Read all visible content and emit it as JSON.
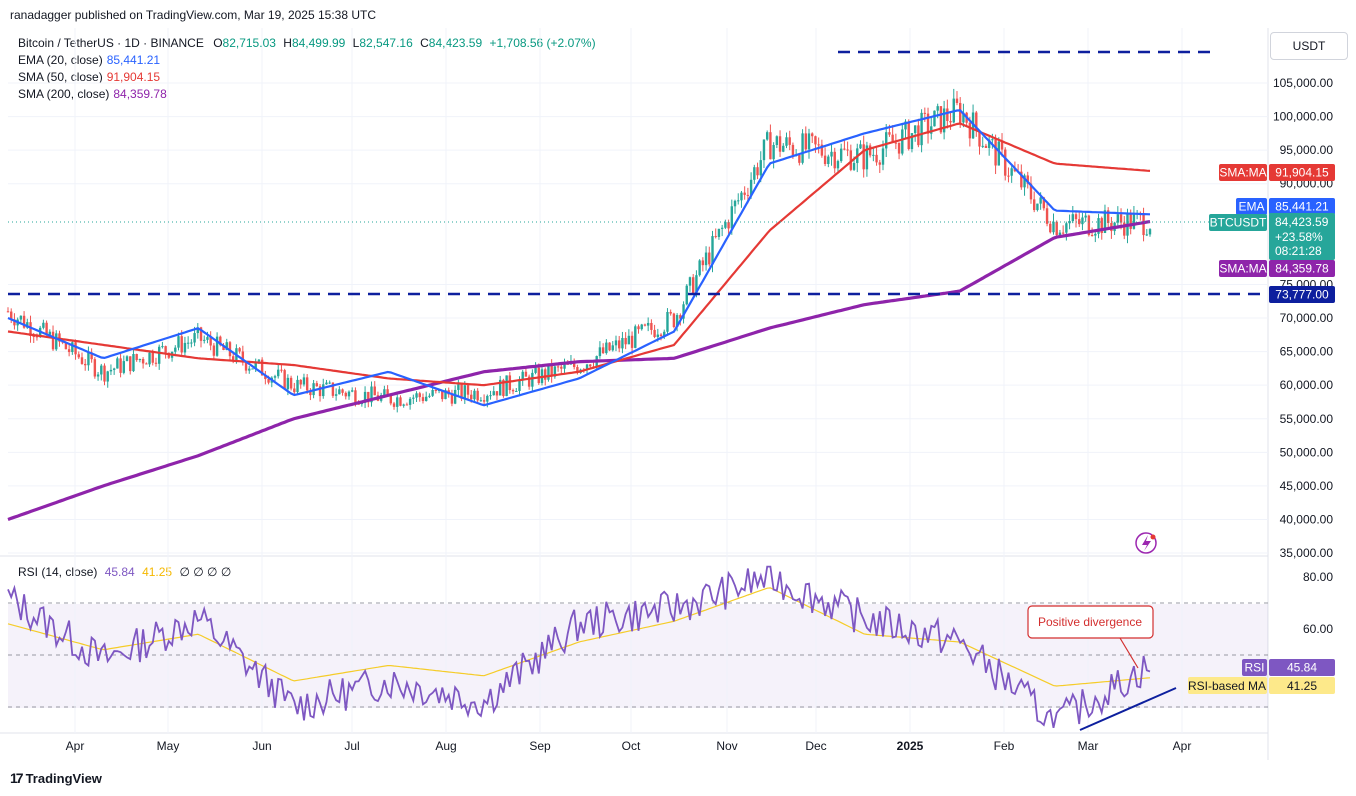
{
  "header": {
    "publisher": "ranadagger published on TradingView.com, Mar 19, 2025 15:38 UTC"
  },
  "legend": {
    "symbol": "Bitcoin / TetherUS · 1D · BINANCE",
    "o_label": "O",
    "o_value": "82,715.03",
    "h_label": "H",
    "h_value": "84,499.99",
    "l_label": "L",
    "l_value": "82,547.16",
    "c_label": "C",
    "c_value": "84,423.59",
    "change": "+1,708.56 (+2.07%)",
    "ema20_label": "EMA (20, close)",
    "ema20_value": "85,441.21",
    "sma50_label": "SMA (50, close)",
    "sma50_value": "91,904.15",
    "sma200_label": "SMA (200, close)",
    "sma200_value": "84,359.78"
  },
  "rsi_legend": {
    "label": "RSI (14, close)",
    "rsi": "45.84",
    "ma": "41.25",
    "extra": "∅ ∅ ∅ ∅"
  },
  "axis": {
    "unit": "USDT",
    "price_ticks": [
      "105,000.00",
      "100,000.00",
      "95,000.00",
      "90,000.00",
      "75,000.00",
      "70,000.00",
      "65,000.00",
      "60,000.00",
      "55,000.00",
      "50,000.00",
      "45,000.00",
      "40,000.00",
      "35,000.00"
    ],
    "rsi_ticks": [
      "80.00",
      "60.00"
    ],
    "months": [
      "Apr",
      "May",
      "Jun",
      "Jul",
      "Aug",
      "Sep",
      "Oct",
      "Nov",
      "Dec",
      "2025",
      "Feb",
      "Mar",
      "Apr"
    ]
  },
  "tags": {
    "sma50_name": "SMA:MA",
    "sma50_value": "91,904.15",
    "ema_name": "EMA",
    "ema_value": "85,441.21",
    "price_name": "BTCUSDT",
    "price_value": "84,423.59",
    "price_change": "+23.58%",
    "countdown": "08:21:28",
    "sma200_name": "SMA:MA",
    "sma200_value": "84,359.78",
    "support_value": "73,777.00",
    "rsi_name": "RSI",
    "rsi_value": "45.84",
    "rsi_ma_name": "RSI-based MA",
    "rsi_ma_value": "41.25"
  },
  "annotation": {
    "text": "Positive divergence"
  },
  "footer": {
    "brand": "TradingView"
  },
  "colors": {
    "ema": "#2962ff",
    "sma50": "#e53935",
    "sma200": "#8e24aa",
    "up": "#26a69a",
    "down": "#ef5350",
    "rsi": "#7e57c2",
    "rsi_ma": "#f5cc28",
    "line_blue": "#0d1f9e"
  },
  "chart_data": {
    "type": "candlestick",
    "symbol": "BTCUSDT",
    "price_range": [
      35000,
      110000
    ],
    "rsi_range": [
      20,
      85
    ],
    "resistance_level": 109000,
    "support_level": 73777,
    "last_price": 84423.59,
    "months": [
      "Apr",
      "May",
      "Jun",
      "Jul",
      "Aug",
      "Sep",
      "Oct",
      "Nov",
      "Dec",
      "2025",
      "Feb",
      "Mar",
      "Apr"
    ],
    "close_monthly": [
      71000,
      62000,
      67000,
      60000,
      58000,
      59000,
      63000,
      70000,
      96000,
      94000,
      101000,
      84000,
      84424
    ],
    "ema20_monthly": [
      70000,
      64000,
      68500,
      58500,
      62000,
      57000,
      61000,
      68000,
      93000,
      97500,
      101000,
      86000,
      85441
    ],
    "sma50_monthly": [
      68000,
      66000,
      64000,
      63000,
      61000,
      60000,
      62000,
      66000,
      83000,
      95000,
      99000,
      93000,
      91904
    ],
    "sma200_monthly": [
      40000,
      45000,
      49500,
      55000,
      58500,
      62000,
      63500,
      64000,
      68500,
      72000,
      74000,
      82000,
      84360
    ],
    "rsi_monthly": [
      72,
      48,
      64,
      30,
      40,
      32,
      62,
      68,
      80,
      64,
      55,
      24,
      45.84
    ],
    "rsi_ma_monthly": [
      62,
      52,
      58,
      40,
      46,
      42,
      55,
      63,
      76,
      58,
      55,
      38,
      41.25
    ]
  }
}
